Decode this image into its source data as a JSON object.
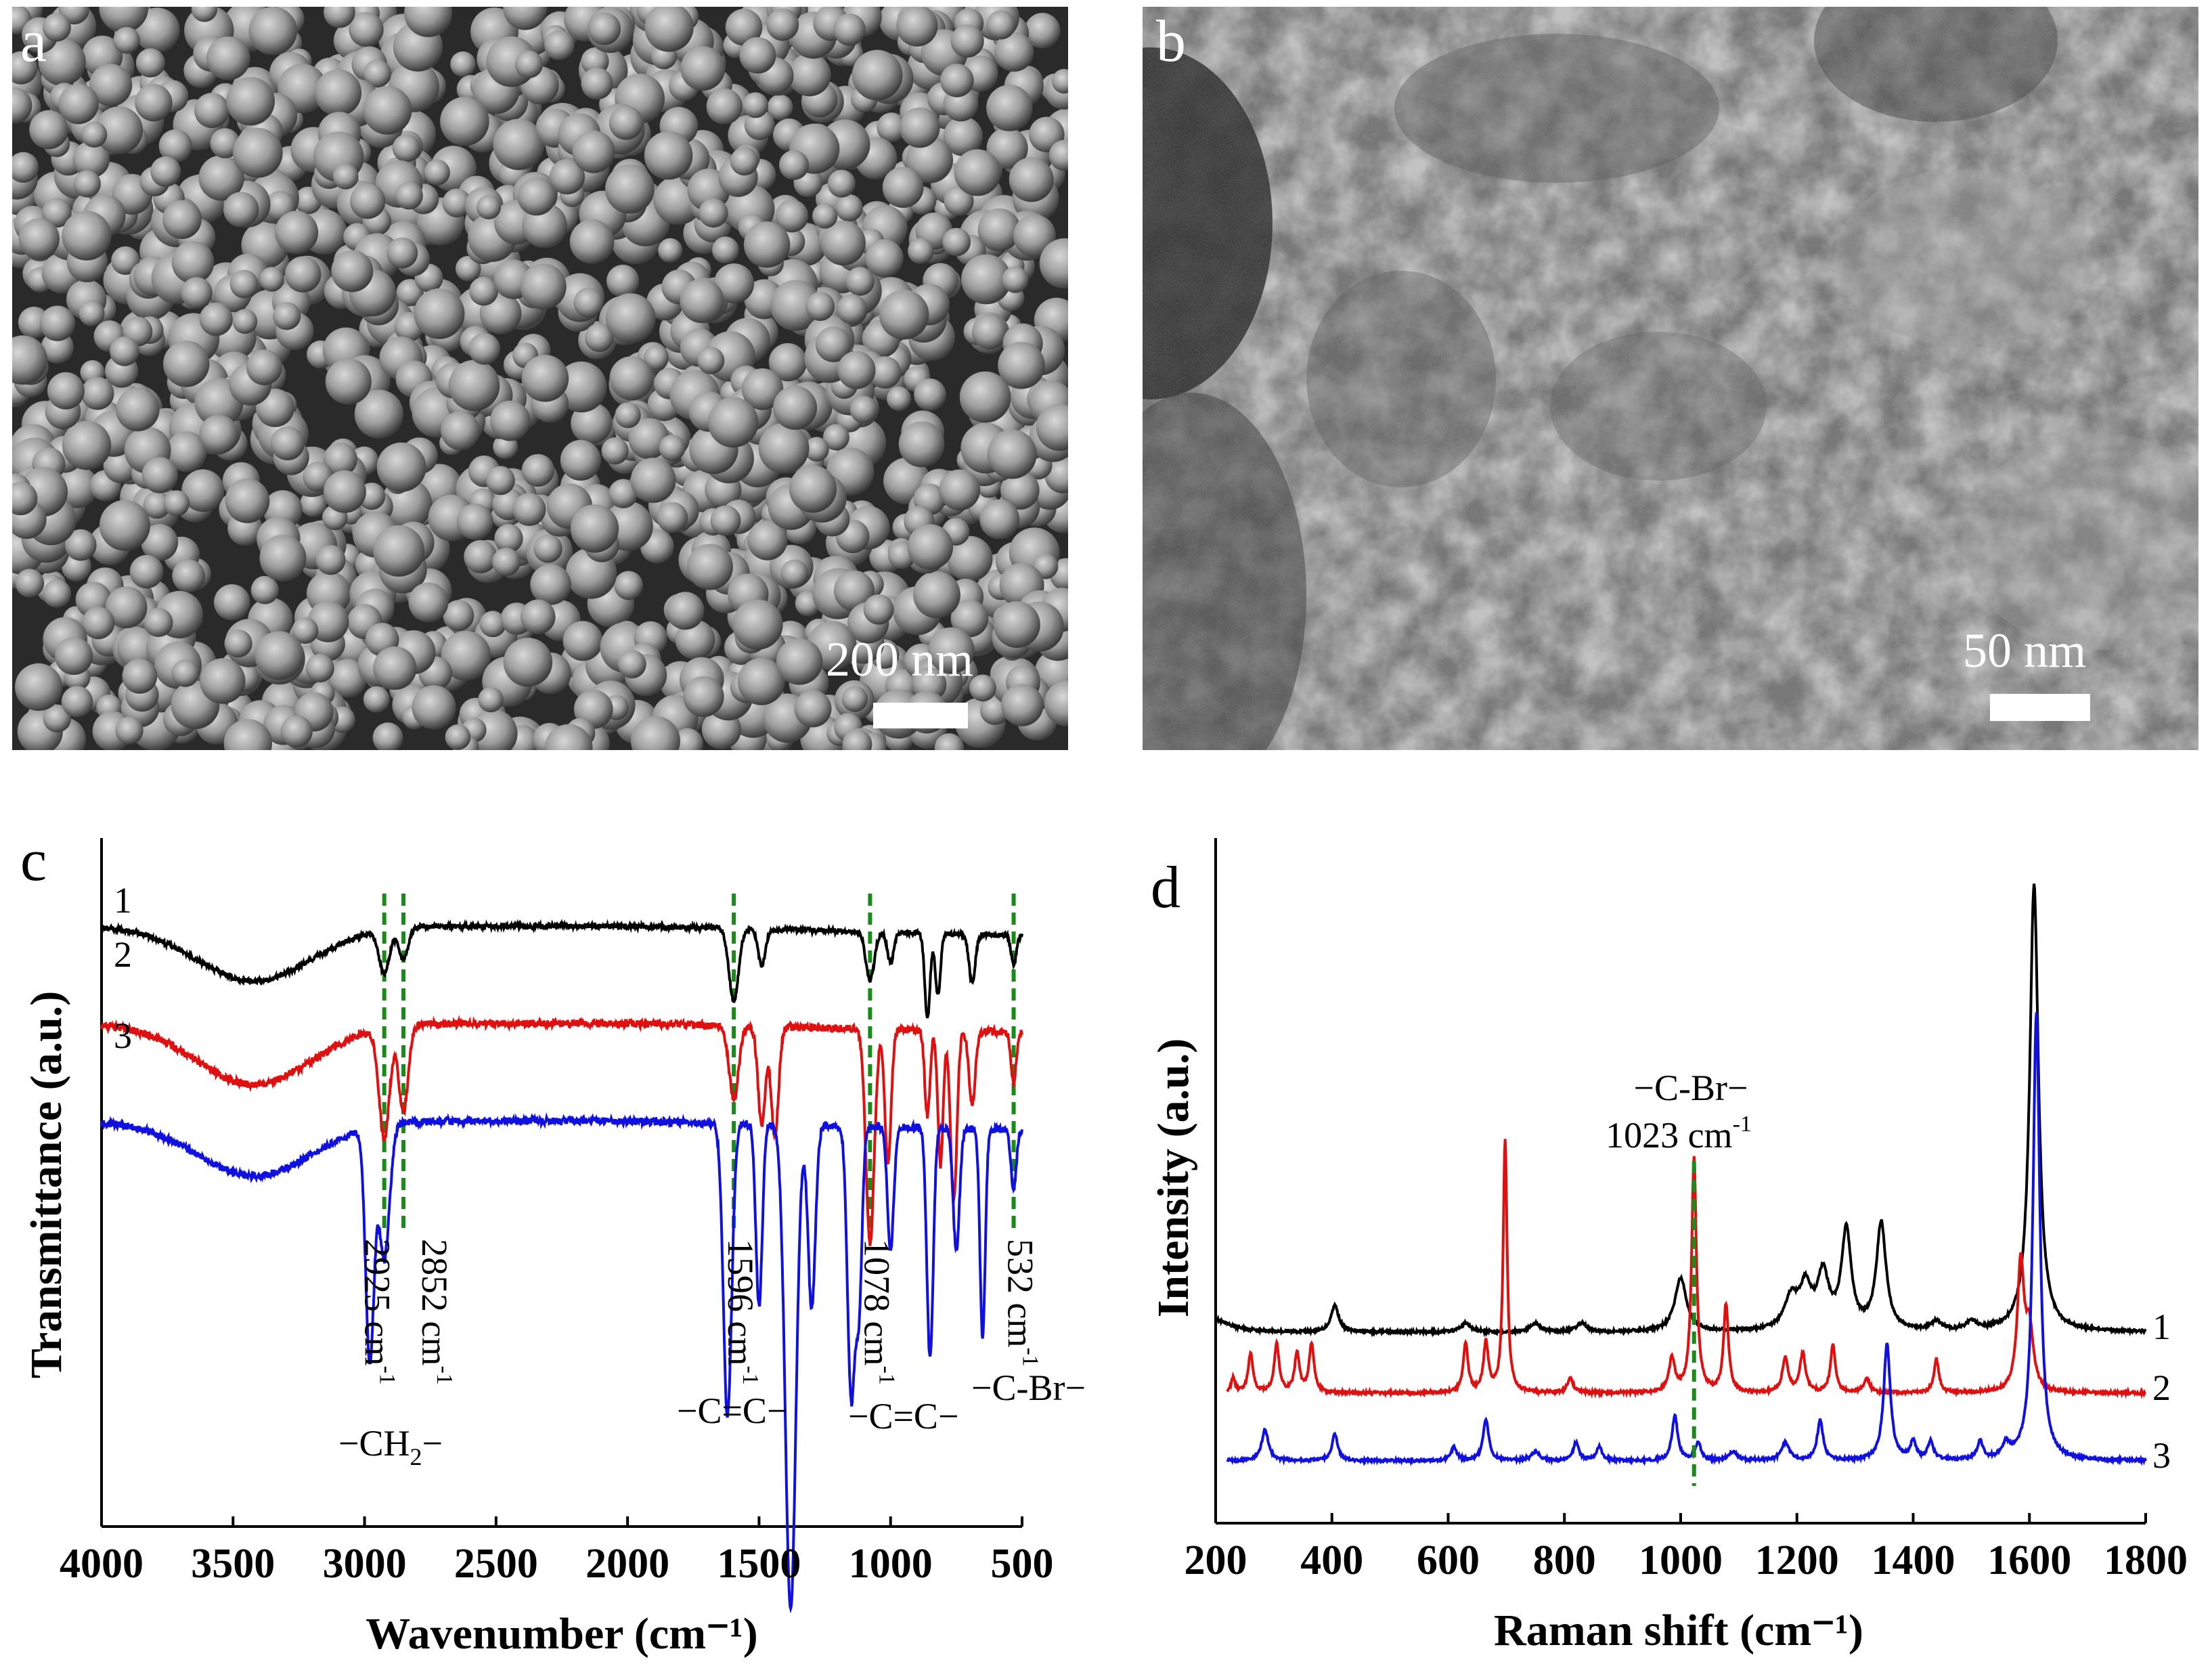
{
  "panels": {
    "a": {
      "letter": "a",
      "scale_bar_label": "200 nm"
    },
    "b": {
      "letter": "b",
      "scale_bar_label": "50 nm"
    }
  },
  "chart_data": [
    {
      "panel": "c",
      "type": "line",
      "title": "",
      "xlabel": "Wavenumber (cm⁻¹)",
      "ylabel": "Transmittance (a.u.)",
      "xlim": [
        4000,
        500
      ],
      "x_reversed": true,
      "xticks": [
        4000,
        3500,
        3000,
        2500,
        2000,
        1500,
        1000,
        500
      ],
      "grid": false,
      "colors": {
        "1": "#000000",
        "2": "#e01010",
        "3": "#1010e0",
        "marker": "#1a8a1a"
      },
      "series": [
        {
          "name": "1",
          "offset": 0.0,
          "baseline": 0.98,
          "bands": [
            [
              3420,
              0.09,
              220
            ],
            [
              2925,
              0.07,
              20
            ],
            [
              2852,
              0.05,
              18
            ],
            [
              1596,
              0.12,
              18
            ],
            [
              1490,
              0.06,
              14
            ],
            [
              1078,
              0.08,
              16
            ],
            [
              1000,
              0.05,
              12
            ],
            [
              860,
              0.14,
              10
            ],
            [
              820,
              0.1,
              10
            ],
            [
              690,
              0.08,
              12
            ],
            [
              532,
              0.05,
              10
            ]
          ]
        },
        {
          "name": "2",
          "offset": 0.16,
          "bands": [
            [
              3420,
              0.1,
              220
            ],
            [
              2925,
              0.18,
              20
            ],
            [
              2852,
              0.14,
              18
            ],
            [
              1596,
              0.12,
              18
            ],
            [
              1490,
              0.16,
              14
            ],
            [
              1440,
              0.18,
              14
            ],
            [
              1078,
              0.35,
              16
            ],
            [
              1010,
              0.22,
              12
            ],
            [
              860,
              0.14,
              10
            ],
            [
              810,
              0.22,
              10
            ],
            [
              760,
              0.28,
              12
            ],
            [
              690,
              0.12,
              12
            ],
            [
              532,
              0.08,
              10
            ]
          ]
        },
        {
          "name": "3",
          "offset": 0.32,
          "bands": [
            [
              3420,
              0.09,
              220
            ],
            [
              2980,
              0.38,
              16
            ],
            [
              2925,
              0.22,
              20
            ],
            [
              1620,
              0.48,
              16
            ],
            [
              1500,
              0.3,
              12
            ],
            [
              1380,
              0.8,
              20
            ],
            [
              1300,
              0.3,
              14
            ],
            [
              1150,
              0.44,
              14
            ],
            [
              1120,
              0.28,
              12
            ],
            [
              1000,
              0.2,
              12
            ],
            [
              850,
              0.38,
              12
            ],
            [
              750,
              0.2,
              12
            ],
            [
              650,
              0.34,
              10
            ],
            [
              532,
              0.1,
              10
            ]
          ]
        }
      ],
      "markers": [
        2925,
        2852,
        1596,
        1078,
        532
      ],
      "annotations": [
        {
          "text": "2925 cm",
          "sup": "-1",
          "x": 2925
        },
        {
          "text": "2852 cm",
          "sup": "-1",
          "x": 2852
        },
        {
          "text": "1596 cm",
          "sup": "-1",
          "x": 1596
        },
        {
          "text": "1078 cm",
          "sup": "-1",
          "x": 1078
        },
        {
          "text": "532 cm",
          "sup": "-1",
          "x": 532
        }
      ],
      "group_labels": {
        "ch2_main": "−CH",
        "ch2_sub": "2",
        "ch2_end": "−",
        "cc1": "−C=C−",
        "cc2": "−C=C−",
        "cbr": "−C-Br−"
      }
    },
    {
      "panel": "d",
      "type": "line",
      "title": "",
      "xlabel": "Raman shift (cm⁻¹)",
      "ylabel": "Intensity (a.u.)",
      "xlim": [
        200,
        1800
      ],
      "xticks": [
        200,
        400,
        600,
        800,
        1000,
        1200,
        1400,
        1600,
        1800
      ],
      "grid": false,
      "colors": {
        "1": "#000000",
        "2": "#e01010",
        "3": "#1010e0",
        "marker": "#1a8a1a"
      },
      "series": [
        {
          "name": "1",
          "level": 0.0,
          "peaks": [
            [
              405,
              0.06,
              8
            ],
            [
              630,
              0.02,
              10
            ],
            [
              750,
              0.02,
              10
            ],
            [
              830,
              0.02,
              10
            ],
            [
              1000,
              0.12,
              12
            ],
            [
              1190,
              0.07,
              14
            ],
            [
              1215,
              0.09,
              12
            ],
            [
              1245,
              0.12,
              12
            ],
            [
              1285,
              0.22,
              10
            ],
            [
              1345,
              0.24,
              10
            ],
            [
              1440,
              0.02,
              10
            ],
            [
              1500,
              0.02,
              10
            ],
            [
              1608,
              1.0,
              9
            ]
          ]
        },
        {
          "name": "2",
          "level": 0.0,
          "peaks": [
            [
              230,
              0.03,
              4
            ],
            [
              260,
              0.08,
              5
            ],
            [
              305,
              0.1,
              5
            ],
            [
              340,
              0.08,
              5
            ],
            [
              365,
              0.1,
              5
            ],
            [
              630,
              0.1,
              5
            ],
            [
              665,
              0.1,
              5
            ],
            [
              698,
              0.52,
              4
            ],
            [
              810,
              0.03,
              6
            ],
            [
              985,
              0.07,
              6
            ],
            [
              1023,
              0.48,
              5
            ],
            [
              1078,
              0.18,
              5
            ],
            [
              1180,
              0.07,
              6
            ],
            [
              1210,
              0.08,
              6
            ],
            [
              1262,
              0.1,
              5
            ],
            [
              1320,
              0.03,
              6
            ],
            [
              1440,
              0.07,
              5
            ],
            [
              1585,
              0.26,
              7
            ],
            [
              1600,
              0.12,
              8
            ]
          ]
        },
        {
          "name": "3",
          "level": 0.0,
          "peaks": [
            [
              285,
              0.07,
              7
            ],
            [
              405,
              0.06,
              6
            ],
            [
              610,
              0.03,
              6
            ],
            [
              665,
              0.09,
              6
            ],
            [
              750,
              0.02,
              8
            ],
            [
              820,
              0.04,
              6
            ],
            [
              860,
              0.03,
              6
            ],
            [
              990,
              0.1,
              6
            ],
            [
              1030,
              0.04,
              6
            ],
            [
              1090,
              0.02,
              8
            ],
            [
              1180,
              0.04,
              8
            ],
            [
              1240,
              0.09,
              6
            ],
            [
              1355,
              0.26,
              7
            ],
            [
              1400,
              0.04,
              6
            ],
            [
              1430,
              0.04,
              6
            ],
            [
              1515,
              0.04,
              6
            ],
            [
              1560,
              0.03,
              8
            ],
            [
              1612,
              1.0,
              7
            ]
          ]
        }
      ],
      "marker": 1023,
      "annotation": {
        "line1": "−C-Br−",
        "line2": "1023 cm",
        "sup": "-1"
      }
    }
  ],
  "panel_letters": {
    "c": "c",
    "d": "d"
  },
  "series_labels": {
    "1": "1",
    "2": "2",
    "3": "3"
  }
}
